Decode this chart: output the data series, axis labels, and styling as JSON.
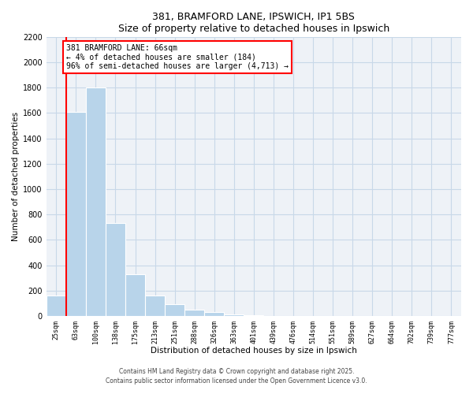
{
  "title": "381, BRAMFORD LANE, IPSWICH, IP1 5BS",
  "subtitle": "Size of property relative to detached houses in Ipswich",
  "xlabel": "Distribution of detached houses by size in Ipswich",
  "ylabel": "Number of detached properties",
  "bar_labels": [
    "25sqm",
    "63sqm",
    "100sqm",
    "138sqm",
    "175sqm",
    "213sqm",
    "251sqm",
    "288sqm",
    "326sqm",
    "363sqm",
    "401sqm",
    "439sqm",
    "476sqm",
    "514sqm",
    "551sqm",
    "589sqm",
    "627sqm",
    "664sqm",
    "702sqm",
    "739sqm",
    "777sqm"
  ],
  "bar_values": [
    160,
    1610,
    1800,
    730,
    330,
    160,
    90,
    50,
    30,
    15,
    5,
    0,
    0,
    0,
    0,
    0,
    0,
    0,
    0,
    0,
    0
  ],
  "bar_color": "#b8d4ea",
  "vline_x": 0.5,
  "vline_color": "red",
  "annotation_line1": "381 BRAMFORD LANE: 66sqm",
  "annotation_line2": "← 4% of detached houses are smaller (184)",
  "annotation_line3": "96% of semi-detached houses are larger (4,713) →",
  "annotation_box_color": "white",
  "annotation_box_edge_color": "red",
  "ylim": [
    0,
    2200
  ],
  "yticks": [
    0,
    200,
    400,
    600,
    800,
    1000,
    1200,
    1400,
    1600,
    1800,
    2000,
    2200
  ],
  "grid_color": "#c8d8e8",
  "background_color": "#eef2f7",
  "footer_line1": "Contains HM Land Registry data © Crown copyright and database right 2025.",
  "footer_line2": "Contains public sector information licensed under the Open Government Licence v3.0."
}
